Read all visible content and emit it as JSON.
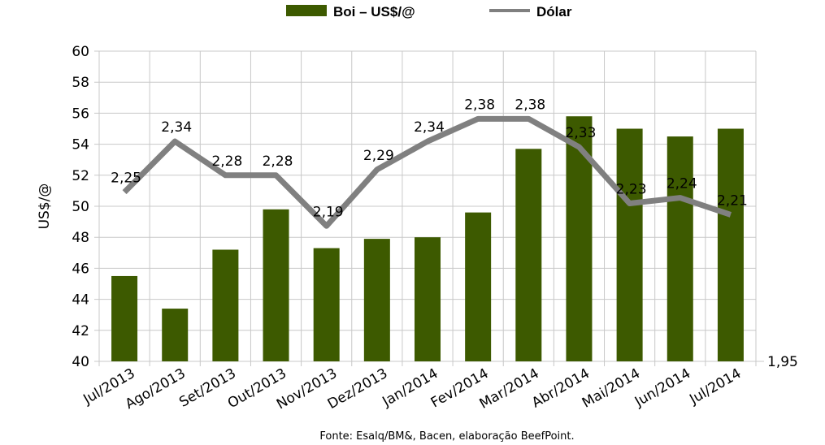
{
  "chart_data": {
    "type": "bar+line",
    "categories": [
      "Jul/2013",
      "Ago/2013",
      "Set/2013",
      "Out/2013",
      "Nov/2013",
      "Dez/2013",
      "Jan/2014",
      "Fev/2014",
      "Mar/2014",
      "Abr/2014",
      "Mai/2014",
      "Jun/2014",
      "Jul/2014"
    ],
    "series": [
      {
        "name": "Boi – US$/@",
        "type": "bar",
        "axis": "left",
        "color": "#3d5a00",
        "values": [
          45.5,
          43.4,
          47.2,
          49.8,
          47.3,
          47.9,
          48.0,
          49.6,
          53.7,
          55.8,
          55.0,
          54.5,
          55.0
        ]
      },
      {
        "name": "Dólar",
        "type": "line",
        "axis": "right",
        "color": "#808080",
        "values": [
          2.25,
          2.34,
          2.28,
          2.28,
          2.19,
          2.29,
          2.34,
          2.38,
          2.38,
          2.33,
          2.23,
          2.24,
          2.21
        ],
        "labels": [
          "2,25",
          "2,34",
          "2,28",
          "2,28",
          "2,19",
          "2,29",
          "2,34",
          "2,38",
          "2,38",
          "2,33",
          "2,23",
          "2,24",
          "2,21"
        ]
      }
    ],
    "ylabel": "US$/@",
    "ylim": [
      40,
      60
    ],
    "yticks": [
      "40",
      "42",
      "44",
      "46",
      "48",
      "50",
      "52",
      "54",
      "56",
      "58",
      "60"
    ],
    "y2lim": [
      1.95,
      2.5
    ],
    "y2tick_label": "1,95",
    "grid": true,
    "legend": "top-center",
    "source": "Fonte: Esalq/BM&, Bacen, elaboração BeefPoint."
  }
}
